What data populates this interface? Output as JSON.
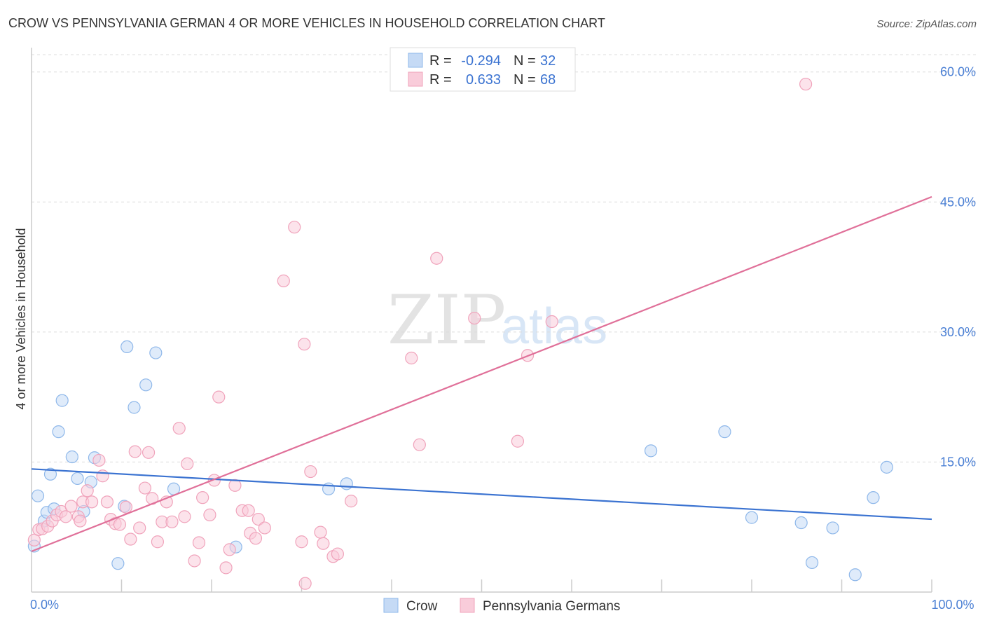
{
  "chart_data": {
    "type": "scatter",
    "title": "CROW VS PENNSYLVANIA GERMAN 4 OR MORE VEHICLES IN HOUSEHOLD CORRELATION CHART",
    "source": "Source: ZipAtlas.com",
    "ylabel": "4 or more Vehicles in Household",
    "xlabel": "",
    "xlim": [
      0,
      100
    ],
    "ylim": [
      0,
      62
    ],
    "x_tick_labels": [
      {
        "value": 0,
        "label": "0.0%"
      },
      {
        "value": 100,
        "label": "100.0%"
      }
    ],
    "y_tick_labels": [
      {
        "value": 15,
        "label": "15.0%"
      },
      {
        "value": 30,
        "label": "30.0%"
      },
      {
        "value": 45,
        "label": "45.0%"
      },
      {
        "value": 60,
        "label": "60.0%"
      }
    ],
    "watermark": {
      "zip": "ZIP",
      "atlas": "atlas"
    },
    "legend": {
      "r_label": "R =",
      "n_label": "N =",
      "entries": [
        {
          "name": "Crow",
          "r": "-0.294",
          "n": "32",
          "color": "#8fb8ea",
          "fill": "#c5daf5"
        },
        {
          "name": "Pennsylvania Germans",
          "r": "0.633",
          "n": "68",
          "color": "#f0a3bb",
          "fill": "#f9ccda"
        }
      ]
    },
    "series": [
      {
        "name": "Crow",
        "color": "#8fb8ea",
        "fill": "#c5daf5",
        "trend_color": "#3b73d1",
        "trend": [
          [
            0,
            14.2
          ],
          [
            100,
            8.4
          ]
        ],
        "points": [
          [
            0.3,
            5.3
          ],
          [
            0.7,
            11.1
          ],
          [
            1.4,
            8.2
          ],
          [
            1.7,
            9.2
          ],
          [
            2.1,
            13.6
          ],
          [
            2.5,
            9.6
          ],
          [
            3.0,
            18.5
          ],
          [
            3.4,
            22.1
          ],
          [
            4.5,
            15.6
          ],
          [
            5.1,
            13.1
          ],
          [
            5.8,
            9.3
          ],
          [
            6.6,
            12.7
          ],
          [
            7.0,
            15.5
          ],
          [
            9.6,
            3.3
          ],
          [
            10.3,
            9.9
          ],
          [
            10.6,
            28.3
          ],
          [
            11.4,
            21.3
          ],
          [
            12.7,
            23.9
          ],
          [
            13.8,
            27.6
          ],
          [
            15.8,
            11.9
          ],
          [
            22.7,
            5.2
          ],
          [
            33.0,
            11.9
          ],
          [
            35.0,
            12.5
          ],
          [
            68.8,
            16.3
          ],
          [
            77.0,
            18.5
          ],
          [
            80.0,
            8.6
          ],
          [
            85.5,
            8.0
          ],
          [
            86.7,
            3.4
          ],
          [
            89.0,
            7.4
          ],
          [
            91.5,
            2.0
          ],
          [
            93.5,
            10.9
          ],
          [
            95.0,
            14.4
          ]
        ]
      },
      {
        "name": "Pennsylvania Germans",
        "color": "#f0a3bb",
        "fill": "#f9ccda",
        "trend_color": "#e07099",
        "trend": [
          [
            0,
            4.7
          ],
          [
            100,
            45.6
          ]
        ],
        "points": [
          [
            0.3,
            6.0
          ],
          [
            0.8,
            7.2
          ],
          [
            1.2,
            7.3
          ],
          [
            1.8,
            7.6
          ],
          [
            2.3,
            8.2
          ],
          [
            2.8,
            8.9
          ],
          [
            3.3,
            9.3
          ],
          [
            3.8,
            8.7
          ],
          [
            4.4,
            9.9
          ],
          [
            5.2,
            8.7
          ],
          [
            5.4,
            8.2
          ],
          [
            5.7,
            10.4
          ],
          [
            6.2,
            11.7
          ],
          [
            6.7,
            10.4
          ],
          [
            7.5,
            15.2
          ],
          [
            7.9,
            13.4
          ],
          [
            8.4,
            10.4
          ],
          [
            8.8,
            8.4
          ],
          [
            9.3,
            7.9
          ],
          [
            9.8,
            7.8
          ],
          [
            10.5,
            9.8
          ],
          [
            11.0,
            6.1
          ],
          [
            11.5,
            16.2
          ],
          [
            12.0,
            7.4
          ],
          [
            12.6,
            12.0
          ],
          [
            13.0,
            16.1
          ],
          [
            13.4,
            10.8
          ],
          [
            14.0,
            5.8
          ],
          [
            14.5,
            8.1
          ],
          [
            15.0,
            10.4
          ],
          [
            15.6,
            8.1
          ],
          [
            16.4,
            18.9
          ],
          [
            17.0,
            8.7
          ],
          [
            17.3,
            14.8
          ],
          [
            18.1,
            3.6
          ],
          [
            18.6,
            5.7
          ],
          [
            19.0,
            10.9
          ],
          [
            19.8,
            8.9
          ],
          [
            20.3,
            12.9
          ],
          [
            20.8,
            22.5
          ],
          [
            21.6,
            2.8
          ],
          [
            22.0,
            4.9
          ],
          [
            22.6,
            12.3
          ],
          [
            23.4,
            9.4
          ],
          [
            24.1,
            9.4
          ],
          [
            24.3,
            6.8
          ],
          [
            24.9,
            6.2
          ],
          [
            25.2,
            8.4
          ],
          [
            25.9,
            7.4
          ],
          [
            28.0,
            35.9
          ],
          [
            29.2,
            42.1
          ],
          [
            30.0,
            5.8
          ],
          [
            30.3,
            28.6
          ],
          [
            30.4,
            1.0
          ],
          [
            31.0,
            13.9
          ],
          [
            32.1,
            6.9
          ],
          [
            32.4,
            5.6
          ],
          [
            33.5,
            4.1
          ],
          [
            34.0,
            4.4
          ],
          [
            35.5,
            10.5
          ],
          [
            42.2,
            27.0
          ],
          [
            43.1,
            17.0
          ],
          [
            45.0,
            38.5
          ],
          [
            49.2,
            31.6
          ],
          [
            54.0,
            17.4
          ],
          [
            55.1,
            27.3
          ],
          [
            57.8,
            31.2
          ],
          [
            86.0,
            58.6
          ]
        ]
      }
    ]
  }
}
